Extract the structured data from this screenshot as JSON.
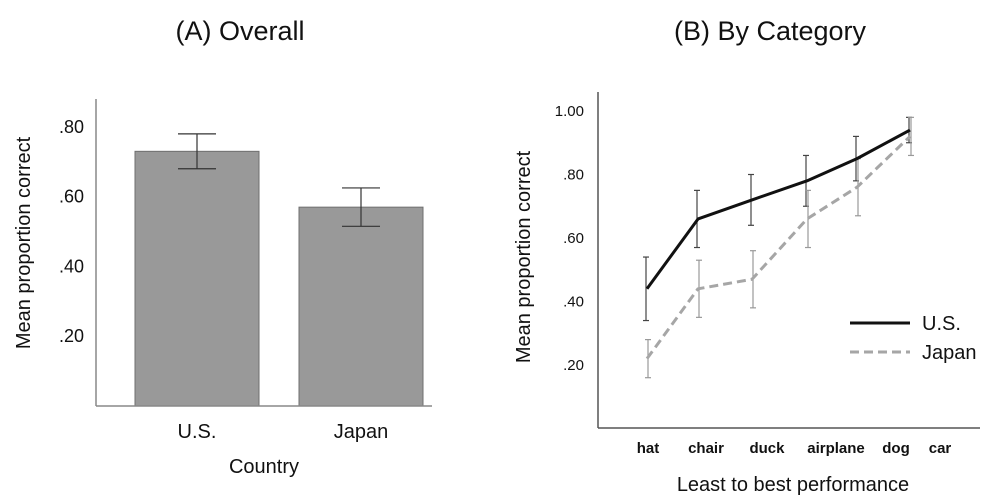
{
  "chart_data": [
    {
      "type": "bar",
      "title": "(A) Overall",
      "xlabel": "Country",
      "ylabel": "Mean proportion correct",
      "categories": [
        "U.S.",
        "Japan"
      ],
      "values": [
        0.73,
        0.57
      ],
      "error": [
        0.05,
        0.055
      ],
      "yticks": [
        0.2,
        0.4,
        0.6,
        0.8
      ],
      "ytick_labels": [
        ".20",
        ".40",
        ".60",
        ".80"
      ],
      "ylim": [
        0,
        0.88
      ],
      "bar_color": "#999999"
    },
    {
      "type": "line",
      "title": "(B) By Category",
      "xlabel": "Least to best performance",
      "ylabel": "Mean proportion correct",
      "categories": [
        "hat",
        "chair",
        "duck",
        "airplane",
        "dog",
        "car"
      ],
      "series": [
        {
          "name": "U.S.",
          "color": "#111111",
          "dashed": false,
          "values": [
            0.44,
            0.66,
            0.72,
            0.78,
            0.85,
            0.94
          ],
          "error": [
            0.1,
            0.09,
            0.08,
            0.08,
            0.07,
            0.04
          ]
        },
        {
          "name": "Japan",
          "color": "#a6a6a6",
          "dashed": true,
          "values": [
            0.22,
            0.44,
            0.47,
            0.66,
            0.76,
            0.92
          ],
          "error": [
            0.06,
            0.09,
            0.09,
            0.09,
            0.09,
            0.06
          ]
        }
      ],
      "yticks": [
        0.2,
        0.4,
        0.6,
        0.8,
        1.0
      ],
      "ytick_labels": [
        ".20",
        ".40",
        ".60",
        ".80",
        "1.00"
      ],
      "ylim": [
        0.0,
        1.05
      ],
      "legend": "right"
    }
  ]
}
